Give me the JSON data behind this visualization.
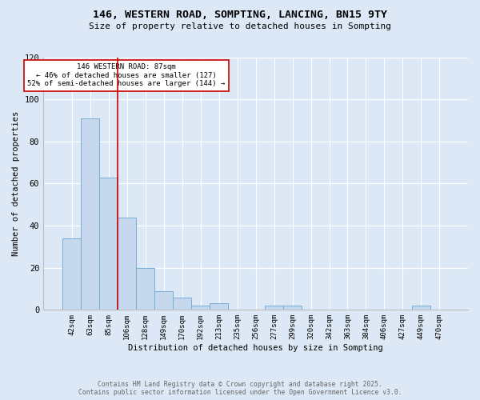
{
  "title": "146, WESTERN ROAD, SOMPTING, LANCING, BN15 9TY",
  "subtitle": "Size of property relative to detached houses in Sompting",
  "xlabel": "Distribution of detached houses by size in Sompting",
  "ylabel": "Number of detached properties",
  "bin_labels": [
    "42sqm",
    "63sqm",
    "85sqm",
    "106sqm",
    "128sqm",
    "149sqm",
    "170sqm",
    "192sqm",
    "213sqm",
    "235sqm",
    "256sqm",
    "277sqm",
    "299sqm",
    "320sqm",
    "342sqm",
    "363sqm",
    "384sqm",
    "406sqm",
    "427sqm",
    "449sqm",
    "470sqm"
  ],
  "bar_values": [
    34,
    91,
    63,
    44,
    20,
    9,
    6,
    2,
    3,
    0,
    0,
    2,
    2,
    0,
    0,
    0,
    0,
    0,
    0,
    2,
    0
  ],
  "bar_color": "#c5d8ee",
  "bar_edge_color": "#7aadd4",
  "vline_x_index": 2,
  "vline_color": "#cc0000",
  "annotation_text": "146 WESTERN ROAD: 87sqm\n← 46% of detached houses are smaller (127)\n52% of semi-detached houses are larger (144) →",
  "annotation_box_color": "#ffffff",
  "annotation_box_edge_color": "#cc0000",
  "ylim": [
    0,
    120
  ],
  "yticks": [
    0,
    20,
    40,
    60,
    80,
    100,
    120
  ],
  "footer_line1": "Contains HM Land Registry data © Crown copyright and database right 2025.",
  "footer_line2": "Contains public sector information licensed under the Open Government Licence v3.0.",
  "plot_bg_color": "#dce8f5",
  "fig_bg_color": "#dce8f5"
}
